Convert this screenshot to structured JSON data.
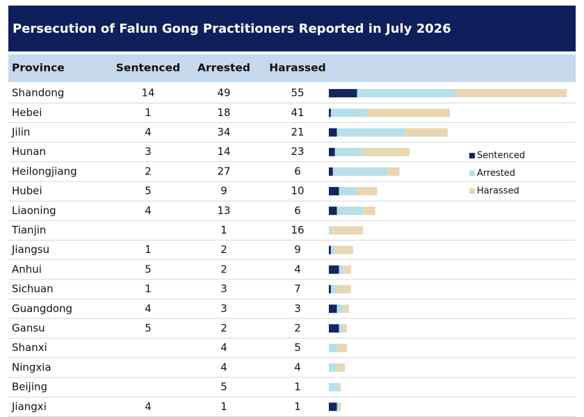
{
  "header": {
    "title": "Persecution of Falun Gong Practitioners Reported in July 2026"
  },
  "table": {
    "columns": [
      "Province",
      "Sentenced",
      "Arrested",
      "Harassed"
    ],
    "rows": [
      [
        "Shandong",
        14,
        49,
        55
      ],
      [
        "Hebei",
        1,
        18,
        41
      ],
      [
        "Jilin",
        4,
        34,
        21
      ],
      [
        "Hunan",
        3,
        14,
        23
      ],
      [
        "Heilongjiang",
        2,
        27,
        6
      ],
      [
        "Hubei",
        5,
        9,
        10
      ],
      [
        "Liaoning",
        4,
        13,
        6
      ],
      [
        "Tianjin",
        null,
        1,
        16
      ],
      [
        "Jiangsu",
        1,
        2,
        9
      ],
      [
        "Anhui",
        5,
        2,
        4
      ],
      [
        "Sichuan",
        1,
        3,
        7
      ],
      [
        "Guangdong",
        4,
        3,
        3
      ],
      [
        "Gansu",
        5,
        2,
        2
      ],
      [
        "Shanxi",
        null,
        4,
        5
      ],
      [
        "Ningxia",
        null,
        4,
        4
      ],
      [
        "Beijing",
        null,
        5,
        1
      ],
      [
        "Jiangxi",
        4,
        1,
        1
      ]
    ]
  },
  "legend": {
    "items": [
      {
        "name": "Sentenced",
        "color": "#13245e"
      },
      {
        "name": "Arrested",
        "color": "#b7dfe9"
      },
      {
        "name": "Harassed",
        "color": "#e9d6b2"
      }
    ]
  }
}
